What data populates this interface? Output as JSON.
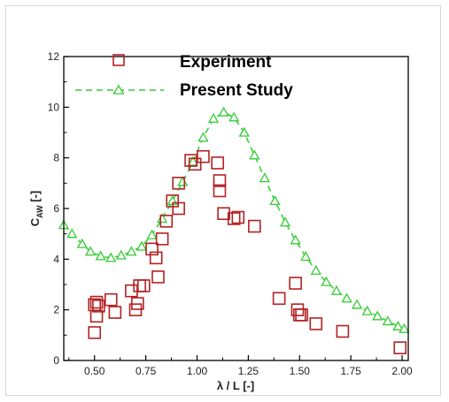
{
  "chart_data": {
    "type": "scatter",
    "xlabel": "λ / L [-]",
    "ylabel_main": "C",
    "ylabel_sub": "AW",
    "ylabel_suffix": " [-]",
    "xlim": [
      0.35,
      2.03
    ],
    "ylim": [
      0,
      12
    ],
    "x_ticks": [
      "0.50",
      "0.75",
      "1.00",
      "1.25",
      "1.50",
      "1.75",
      "2.00"
    ],
    "y_ticks": [
      "0",
      "2",
      "4",
      "6",
      "8",
      "10",
      "12"
    ],
    "grid": false,
    "legend_position": "top",
    "colors": {
      "experiment": "#b22222",
      "present_study": "#33cc33",
      "axis": "#000000"
    },
    "series": [
      {
        "name": "Experiment",
        "marker": "square",
        "style": "markers",
        "x": [
          0.5,
          0.51,
          0.5,
          0.52,
          0.51,
          0.58,
          0.6,
          0.68,
          0.7,
          0.71,
          0.72,
          0.74,
          0.78,
          0.8,
          0.81,
          0.83,
          0.85,
          0.88,
          0.91,
          0.91,
          0.97,
          0.99,
          1.03,
          1.1,
          1.11,
          1.11,
          1.13,
          1.18,
          1.2,
          1.28,
          1.4,
          1.48,
          1.49,
          1.5,
          1.51,
          1.58,
          1.71,
          1.99
        ],
        "y": [
          1.1,
          1.75,
          2.2,
          2.15,
          2.3,
          2.4,
          1.9,
          2.75,
          2.0,
          2.25,
          2.95,
          2.95,
          4.4,
          4.05,
          3.3,
          4.8,
          5.5,
          6.3,
          6.0,
          7.0,
          7.9,
          7.75,
          8.05,
          7.8,
          6.7,
          7.1,
          5.8,
          5.6,
          5.65,
          5.3,
          2.45,
          3.05,
          2.0,
          1.8,
          1.8,
          1.45,
          1.15,
          0.5
        ]
      },
      {
        "name": "Present Study",
        "marker": "triangle",
        "style": "dashed-line-markers",
        "x": [
          0.35,
          0.39,
          0.44,
          0.48,
          0.53,
          0.58,
          0.63,
          0.68,
          0.73,
          0.78,
          0.83,
          0.88,
          0.93,
          0.98,
          1.03,
          1.08,
          1.13,
          1.18,
          1.23,
          1.28,
          1.33,
          1.38,
          1.43,
          1.48,
          1.53,
          1.58,
          1.63,
          1.68,
          1.73,
          1.78,
          1.83,
          1.88,
          1.93,
          1.98,
          2.01
        ],
        "y": [
          5.35,
          5.0,
          4.6,
          4.3,
          4.12,
          4.05,
          4.15,
          4.3,
          4.5,
          4.95,
          5.6,
          6.3,
          7.05,
          7.85,
          8.8,
          9.55,
          9.8,
          9.6,
          9.0,
          8.1,
          7.2,
          6.3,
          5.45,
          4.75,
          4.1,
          3.55,
          3.1,
          2.75,
          2.45,
          2.2,
          1.95,
          1.75,
          1.55,
          1.35,
          1.25
        ]
      }
    ]
  }
}
